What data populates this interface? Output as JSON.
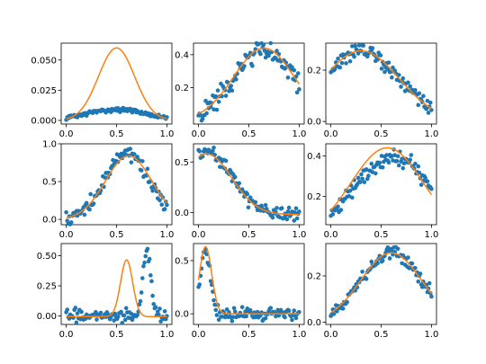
{
  "figure": {
    "layout": "3x3 grid of scatter plots with fitted curves"
  },
  "colors": {
    "points": "#1f77b4",
    "fit": "#ff7f0e"
  },
  "chart_data": [
    {
      "type": "scatter",
      "panel": "r1c1",
      "xlim": [
        -0.05,
        1.05
      ],
      "ylim": [
        -0.003,
        0.064
      ],
      "xticks": [
        {
          "v": 0,
          "label": "0.0"
        },
        {
          "v": 0.5,
          "label": "0.5"
        },
        {
          "v": 1,
          "label": "1.0"
        }
      ],
      "yticks": [
        {
          "v": 0,
          "label": "0.000"
        },
        {
          "v": 0.025,
          "label": "0.025"
        },
        {
          "v": 0.05,
          "label": "0.050"
        }
      ],
      "fit": {
        "type": "gaussian",
        "amplitude": 0.06,
        "center": 0.5,
        "width": 0.18,
        "offset": 0.0
      },
      "points": {
        "type": "gaussian",
        "amplitude": 0.009,
        "center": 0.5,
        "width": 0.3,
        "offset": 0.0,
        "noise": 0.0008,
        "count": 100
      }
    },
    {
      "type": "scatter",
      "panel": "r1c2",
      "xlim": [
        -0.05,
        1.05
      ],
      "ylim": [
        -0.02,
        0.47
      ],
      "xticks": [
        {
          "v": 0,
          "label": "0.0"
        },
        {
          "v": 0.5,
          "label": "0.5"
        },
        {
          "v": 1,
          "label": "1.0"
        }
      ],
      "yticks": [
        {
          "v": 0.2,
          "label": "0.2"
        },
        {
          "v": 0.4,
          "label": "0.4"
        }
      ],
      "fit": {
        "type": "gaussian",
        "amplitude": 0.44,
        "center": 0.65,
        "width": 0.3,
        "offset": 0.0
      },
      "points": {
        "type": "gaussian",
        "amplitude": 0.43,
        "center": 0.65,
        "width": 0.3,
        "offset": 0.0,
        "noise": 0.03,
        "count": 100
      }
    },
    {
      "type": "scatter",
      "panel": "r1c3",
      "xlim": [
        -0.05,
        1.05
      ],
      "ylim": [
        -0.01,
        0.305
      ],
      "xticks": [
        {
          "v": 0,
          "label": "0.0"
        },
        {
          "v": 0.5,
          "label": "0.5"
        },
        {
          "v": 1,
          "label": "1.0"
        }
      ],
      "yticks": [
        {
          "v": 0,
          "label": "0.0"
        },
        {
          "v": 0.2,
          "label": "0.2"
        }
      ],
      "fit": {
        "type": "gaussian",
        "amplitude": 0.275,
        "center": 0.3,
        "width": 0.38,
        "offset": 0.0
      },
      "points": {
        "type": "gaussian",
        "amplitude": 0.27,
        "center": 0.3,
        "width": 0.38,
        "offset": 0.0,
        "noise": 0.015,
        "count": 100
      }
    },
    {
      "type": "scatter",
      "panel": "r2c1",
      "xlim": [
        -0.05,
        1.05
      ],
      "ylim": [
        -0.07,
        1.0
      ],
      "xticks": [
        {
          "v": 0,
          "label": "0.0"
        },
        {
          "v": 0.5,
          "label": "0.5"
        },
        {
          "v": 1,
          "label": "1.0"
        }
      ],
      "yticks": [
        {
          "v": 0,
          "label": "0.0"
        },
        {
          "v": 0.5,
          "label": "0.5"
        },
        {
          "v": 1,
          "label": "1.0"
        }
      ],
      "fit": {
        "type": "gaussian",
        "amplitude": 0.84,
        "center": 0.62,
        "width": 0.23,
        "offset": 0.0
      },
      "points": {
        "type": "gaussian",
        "amplitude": 0.86,
        "center": 0.61,
        "width": 0.22,
        "offset": 0.0,
        "noise": 0.05,
        "count": 100
      }
    },
    {
      "type": "scatter",
      "panel": "r2c2",
      "xlim": [
        -0.05,
        1.05
      ],
      "ylim": [
        -0.12,
        0.68
      ],
      "xticks": [
        {
          "v": 0,
          "label": "0.0"
        },
        {
          "v": 0.5,
          "label": "0.5"
        },
        {
          "v": 1,
          "label": "1.0"
        }
      ],
      "yticks": [
        {
          "v": 0,
          "label": "0.0"
        },
        {
          "v": 0.5,
          "label": "0.5"
        }
      ],
      "fit": {
        "type": "gaussian",
        "amplitude": 0.6,
        "center": 0.08,
        "width": 0.25,
        "offset": -0.02
      },
      "points": {
        "type": "gaussian",
        "amplitude": 0.62,
        "center": 0.08,
        "width": 0.25,
        "offset": -0.02,
        "noise": 0.035,
        "count": 100
      }
    },
    {
      "type": "scatter",
      "panel": "r2c3",
      "xlim": [
        -0.05,
        1.05
      ],
      "ylim": [
        0.06,
        0.46
      ],
      "xticks": [
        {
          "v": 0,
          "label": "0.0"
        },
        {
          "v": 0.5,
          "label": "0.5"
        },
        {
          "v": 1,
          "label": "1.0"
        }
      ],
      "yticks": [
        {
          "v": 0.2,
          "label": "0.2"
        },
        {
          "v": 0.4,
          "label": "0.4"
        }
      ],
      "fit": {
        "type": "gaussian",
        "amplitude": 0.44,
        "center": 0.56,
        "width": 0.36,
        "offset": 0.0
      },
      "points": {
        "type": "gaussian",
        "amplitude": 0.39,
        "center": 0.62,
        "width": 0.4,
        "offset": 0.0,
        "noise": 0.02,
        "count": 100
      }
    },
    {
      "type": "scatter",
      "panel": "r3c1",
      "xlim": [
        -0.05,
        1.05
      ],
      "ylim": [
        -0.07,
        0.6
      ],
      "xticks": [
        {
          "v": 0,
          "label": "0.0"
        },
        {
          "v": 0.5,
          "label": "0.5"
        },
        {
          "v": 1,
          "label": "1.0"
        }
      ],
      "yticks": [
        {
          "v": 0,
          "label": "0.00"
        },
        {
          "v": 0.25,
          "label": "0.25"
        },
        {
          "v": 0.5,
          "label": "0.50"
        }
      ],
      "fit": {
        "type": "gaussian",
        "amplitude": 0.47,
        "center": 0.6,
        "width": 0.06,
        "offset": -0.005
      },
      "points": {
        "type": "gaussian",
        "amplitude": 0.54,
        "center": 0.8,
        "width": 0.04,
        "offset": 0.0,
        "noise": 0.025,
        "count": 100
      }
    },
    {
      "type": "scatter",
      "panel": "r3c2",
      "xlim": [
        -0.05,
        1.05
      ],
      "ylim": [
        -0.1,
        0.66
      ],
      "xticks": [
        {
          "v": 0,
          "label": "0.0"
        },
        {
          "v": 0.5,
          "label": "0.5"
        },
        {
          "v": 1,
          "label": "1.0"
        }
      ],
      "yticks": [
        {
          "v": 0,
          "label": "0.0"
        },
        {
          "v": 0.5,
          "label": "0.5"
        }
      ],
      "fit": {
        "type": "gaussian",
        "amplitude": 0.63,
        "center": 0.07,
        "width": 0.06,
        "offset": 0.0
      },
      "points": {
        "type": "gaussian",
        "amplitude": 0.58,
        "center": 0.07,
        "width": 0.05,
        "offset": 0.0,
        "noise": 0.03,
        "count": 100
      }
    },
    {
      "type": "scatter",
      "panel": "r3c3",
      "xlim": [
        -0.05,
        1.05
      ],
      "ylim": [
        -0.01,
        0.34
      ],
      "xticks": [
        {
          "v": 0,
          "label": "0.0"
        },
        {
          "v": 0.5,
          "label": "0.5"
        },
        {
          "v": 1,
          "label": "1.0"
        }
      ],
      "yticks": [
        {
          "v": 0,
          "label": "0.0"
        },
        {
          "v": 0.2,
          "label": "0.2"
        }
      ],
      "fit": {
        "type": "gaussian",
        "amplitude": 0.3,
        "center": 0.6,
        "width": 0.3,
        "offset": 0.0
      },
      "points": {
        "type": "gaussian",
        "amplitude": 0.3,
        "center": 0.6,
        "width": 0.3,
        "offset": 0.0,
        "noise": 0.015,
        "count": 100
      }
    }
  ]
}
